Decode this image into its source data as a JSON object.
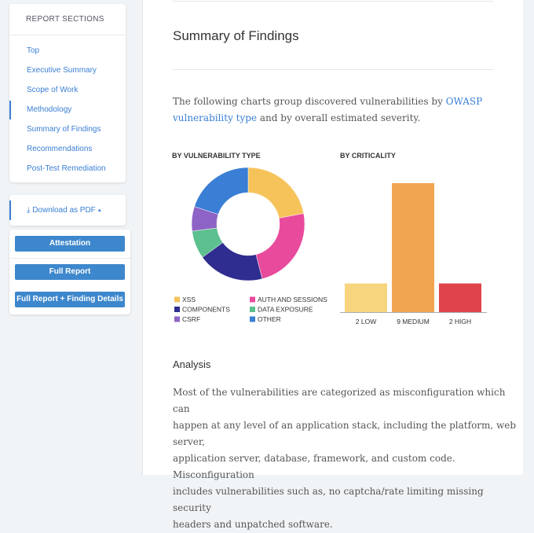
{
  "sidebar": {
    "title": "REPORT SECTIONS",
    "links": [
      "Top",
      "Executive Summary",
      "Scope of Work",
      "Methodology",
      "Summary of Findings",
      "Recommendations",
      "Post-Test Remediation"
    ]
  },
  "download": {
    "label": "Download as PDF",
    "options": [
      "Attestation",
      "Full Report",
      "Full Report + Finding Details"
    ]
  },
  "main": {
    "heading": "Summary of Findings",
    "intro_before": "The following charts group discovered vulnerabilities by ",
    "intro_link": "OWASP vulnerability type",
    "intro_after": " and by overall estimated severity.",
    "analysis_heading": "Analysis",
    "analysis_lines": [
      "Most of the vulnerabilities are categorized as misconfiguration which can",
      "happen at any level of an application stack, including the platform, web server,",
      "application server, database, framework, and custom code. Misconfiguration",
      "includes vulnerabilities such as, no captcha/rate limiting missing security",
      "headers and unpatched software."
    ]
  },
  "chart_data": [
    {
      "type": "pie",
      "title": "BY VULNERABILITY TYPE",
      "categories": [
        "XSS",
        "AUTH AND SESSIONS",
        "COMPONENTS",
        "DATA EXPOSURE",
        "CSRF",
        "OTHER"
      ],
      "values": [
        22,
        24,
        19,
        8,
        7,
        20
      ],
      "colors": [
        "#f6c35b",
        "#e84a9c",
        "#2f2d8f",
        "#5cc08f",
        "#8e63c6",
        "#3a7fd5"
      ]
    },
    {
      "type": "bar",
      "title": "BY CRITICALITY",
      "categories": [
        "2 LOW",
        "9 MEDIUM",
        "2 HIGH"
      ],
      "values": [
        2,
        9,
        2
      ],
      "colors": [
        "#f7d57f",
        "#f2a550",
        "#e0444a"
      ]
    }
  ]
}
